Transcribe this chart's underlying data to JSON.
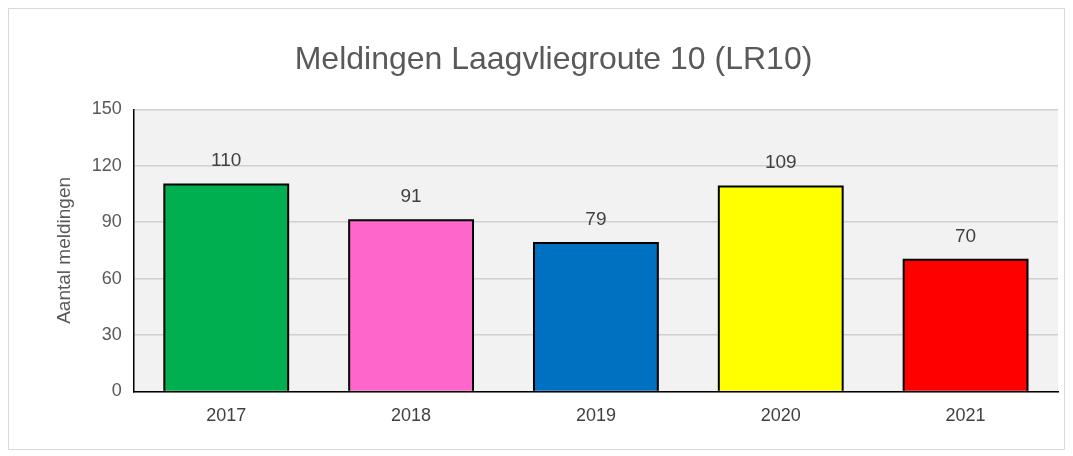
{
  "chart_data": {
    "type": "bar",
    "title": "Meldingen Laagvliegroute 10 (LR10)",
    "ylabel": "Aantal meldingen",
    "categories": [
      "2017",
      "2018",
      "2019",
      "2020",
      "2021"
    ],
    "values": [
      110,
      91,
      79,
      109,
      70
    ],
    "colors": [
      "#00b050",
      "#ff66cc",
      "#0070c0",
      "#ffff00",
      "#ff0000"
    ],
    "ylim": [
      0,
      150
    ],
    "yticks": [
      0,
      30,
      60,
      90,
      120,
      150
    ],
    "grid": "y",
    "data_labels": true,
    "legend": false
  }
}
